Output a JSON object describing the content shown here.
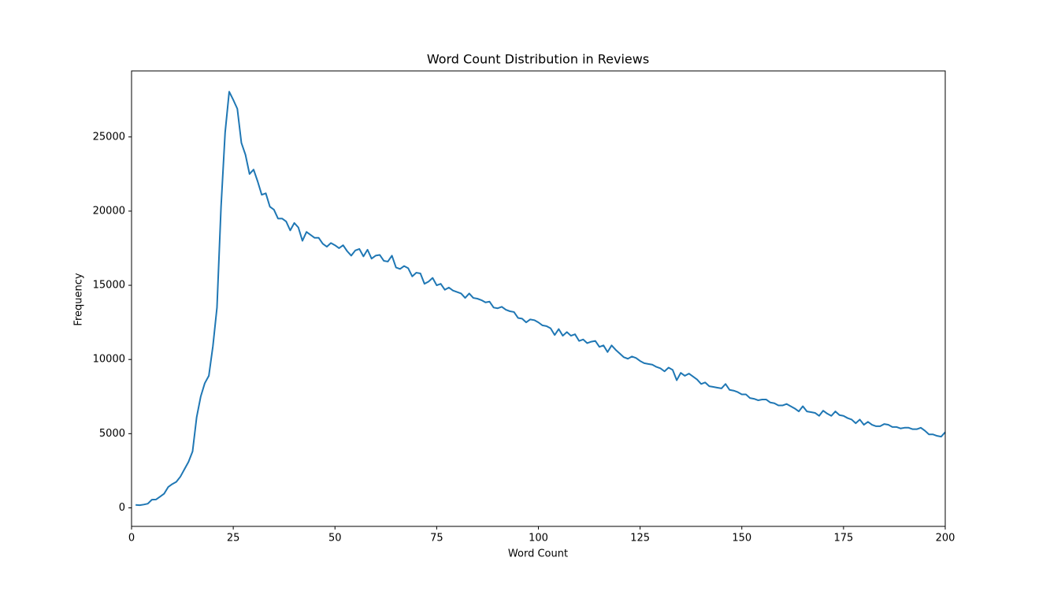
{
  "chart_data": {
    "type": "line",
    "title": "Word Count Distribution in Reviews",
    "x_label": "Word Count",
    "y_label": "Frequency",
    "x": [
      1,
      2,
      3,
      4,
      5,
      6,
      7,
      8,
      9,
      10,
      11,
      12,
      13,
      14,
      15,
      16,
      17,
      18,
      19,
      20,
      21,
      22,
      23,
      24,
      25,
      26,
      27,
      28,
      29,
      30,
      31,
      32,
      33,
      34,
      35,
      36,
      37,
      38,
      39,
      40,
      41,
      42,
      43,
      44,
      45,
      46,
      47,
      48,
      49,
      50,
      51,
      52,
      53,
      54,
      55,
      56,
      57,
      58,
      59,
      60,
      61,
      62,
      63,
      64,
      65,
      66,
      67,
      68,
      69,
      70,
      71,
      72,
      73,
      74,
      75,
      76,
      77,
      78,
      79,
      80,
      81,
      82,
      83,
      84,
      85,
      86,
      87,
      88,
      89,
      90,
      91,
      92,
      93,
      94,
      95,
      96,
      97,
      98,
      99,
      100,
      101,
      102,
      103,
      104,
      105,
      106,
      107,
      108,
      109,
      110,
      111,
      112,
      113,
      114,
      115,
      116,
      117,
      118,
      119,
      120,
      121,
      122,
      123,
      124,
      125,
      126,
      127,
      128,
      129,
      130,
      131,
      132,
      133,
      134,
      135,
      136,
      137,
      138,
      139,
      140,
      141,
      142,
      143,
      144,
      145,
      146,
      147,
      148,
      149,
      150,
      151,
      152,
      153,
      154,
      155,
      156,
      157,
      158,
      159,
      160,
      161,
      162,
      163,
      164,
      165,
      166,
      167,
      168,
      169,
      170,
      171,
      172,
      173,
      174,
      175,
      176,
      177,
      178,
      179,
      180,
      181,
      182,
      183,
      184,
      185,
      186,
      187,
      188,
      189,
      190,
      191,
      192,
      193,
      194,
      195,
      196,
      197,
      198,
      199,
      200
    ],
    "series": [
      {
        "color": "#1f77b4",
        "values": [
          200,
          180,
          220,
          280,
          550,
          560,
          750,
          950,
          1400,
          1600,
          1750,
          2100,
          2600,
          3100,
          3800,
          6100,
          7500,
          8400,
          8900,
          10900,
          13500,
          20300,
          25300,
          28050,
          27500,
          26900,
          24600,
          23800,
          22500,
          22800,
          22000,
          21100,
          21200,
          20300,
          20100,
          19500,
          19500,
          19300,
          18700,
          19200,
          18900,
          18000,
          18600,
          18400,
          18200,
          18200,
          17800,
          17600,
          17850,
          17700,
          17500,
          17700,
          17300,
          17000,
          17350,
          17450,
          16950,
          17400,
          16800,
          17000,
          17050,
          16650,
          16600,
          17000,
          16200,
          16100,
          16300,
          16150,
          15600,
          15850,
          15800,
          15100,
          15250,
          15500,
          15000,
          15100,
          14700,
          14850,
          14650,
          14550,
          14450,
          14150,
          14450,
          14150,
          14100,
          14000,
          13850,
          13900,
          13500,
          13450,
          13550,
          13350,
          13250,
          13200,
          12800,
          12750,
          12500,
          12700,
          12650,
          12500,
          12300,
          12250,
          12100,
          11650,
          12050,
          11600,
          11850,
          11600,
          11700,
          11250,
          11350,
          11100,
          11200,
          11250,
          10850,
          10950,
          10500,
          10950,
          10650,
          10400,
          10150,
          10050,
          10200,
          10100,
          9900,
          9750,
          9700,
          9650,
          9500,
          9400,
          9200,
          9450,
          9300,
          8600,
          9100,
          8900,
          9050,
          8850,
          8650,
          8350,
          8450,
          8200,
          8150,
          8100,
          8050,
          8350,
          7950,
          7900,
          7800,
          7650,
          7650,
          7400,
          7350,
          7250,
          7300,
          7300,
          7100,
          7050,
          6900,
          6900,
          7000,
          6850,
          6700,
          6500,
          6850,
          6500,
          6450,
          6400,
          6200,
          6550,
          6350,
          6200,
          6500,
          6250,
          6200,
          6050,
          5950,
          5700,
          5950,
          5600,
          5800,
          5600,
          5500,
          5500,
          5650,
          5600,
          5450,
          5450,
          5350,
          5400,
          5400,
          5300,
          5300,
          5400,
          5200,
          4950,
          4950,
          4850,
          4800,
          5100
        ]
      }
    ],
    "xlim": [
      0,
      200
    ],
    "xticks": [
      0,
      25,
      50,
      75,
      100,
      125,
      150,
      175,
      200
    ],
    "ylim": [
      -1250,
      29450
    ],
    "yticks": [
      0,
      5000,
      10000,
      15000,
      20000,
      25000
    ]
  }
}
